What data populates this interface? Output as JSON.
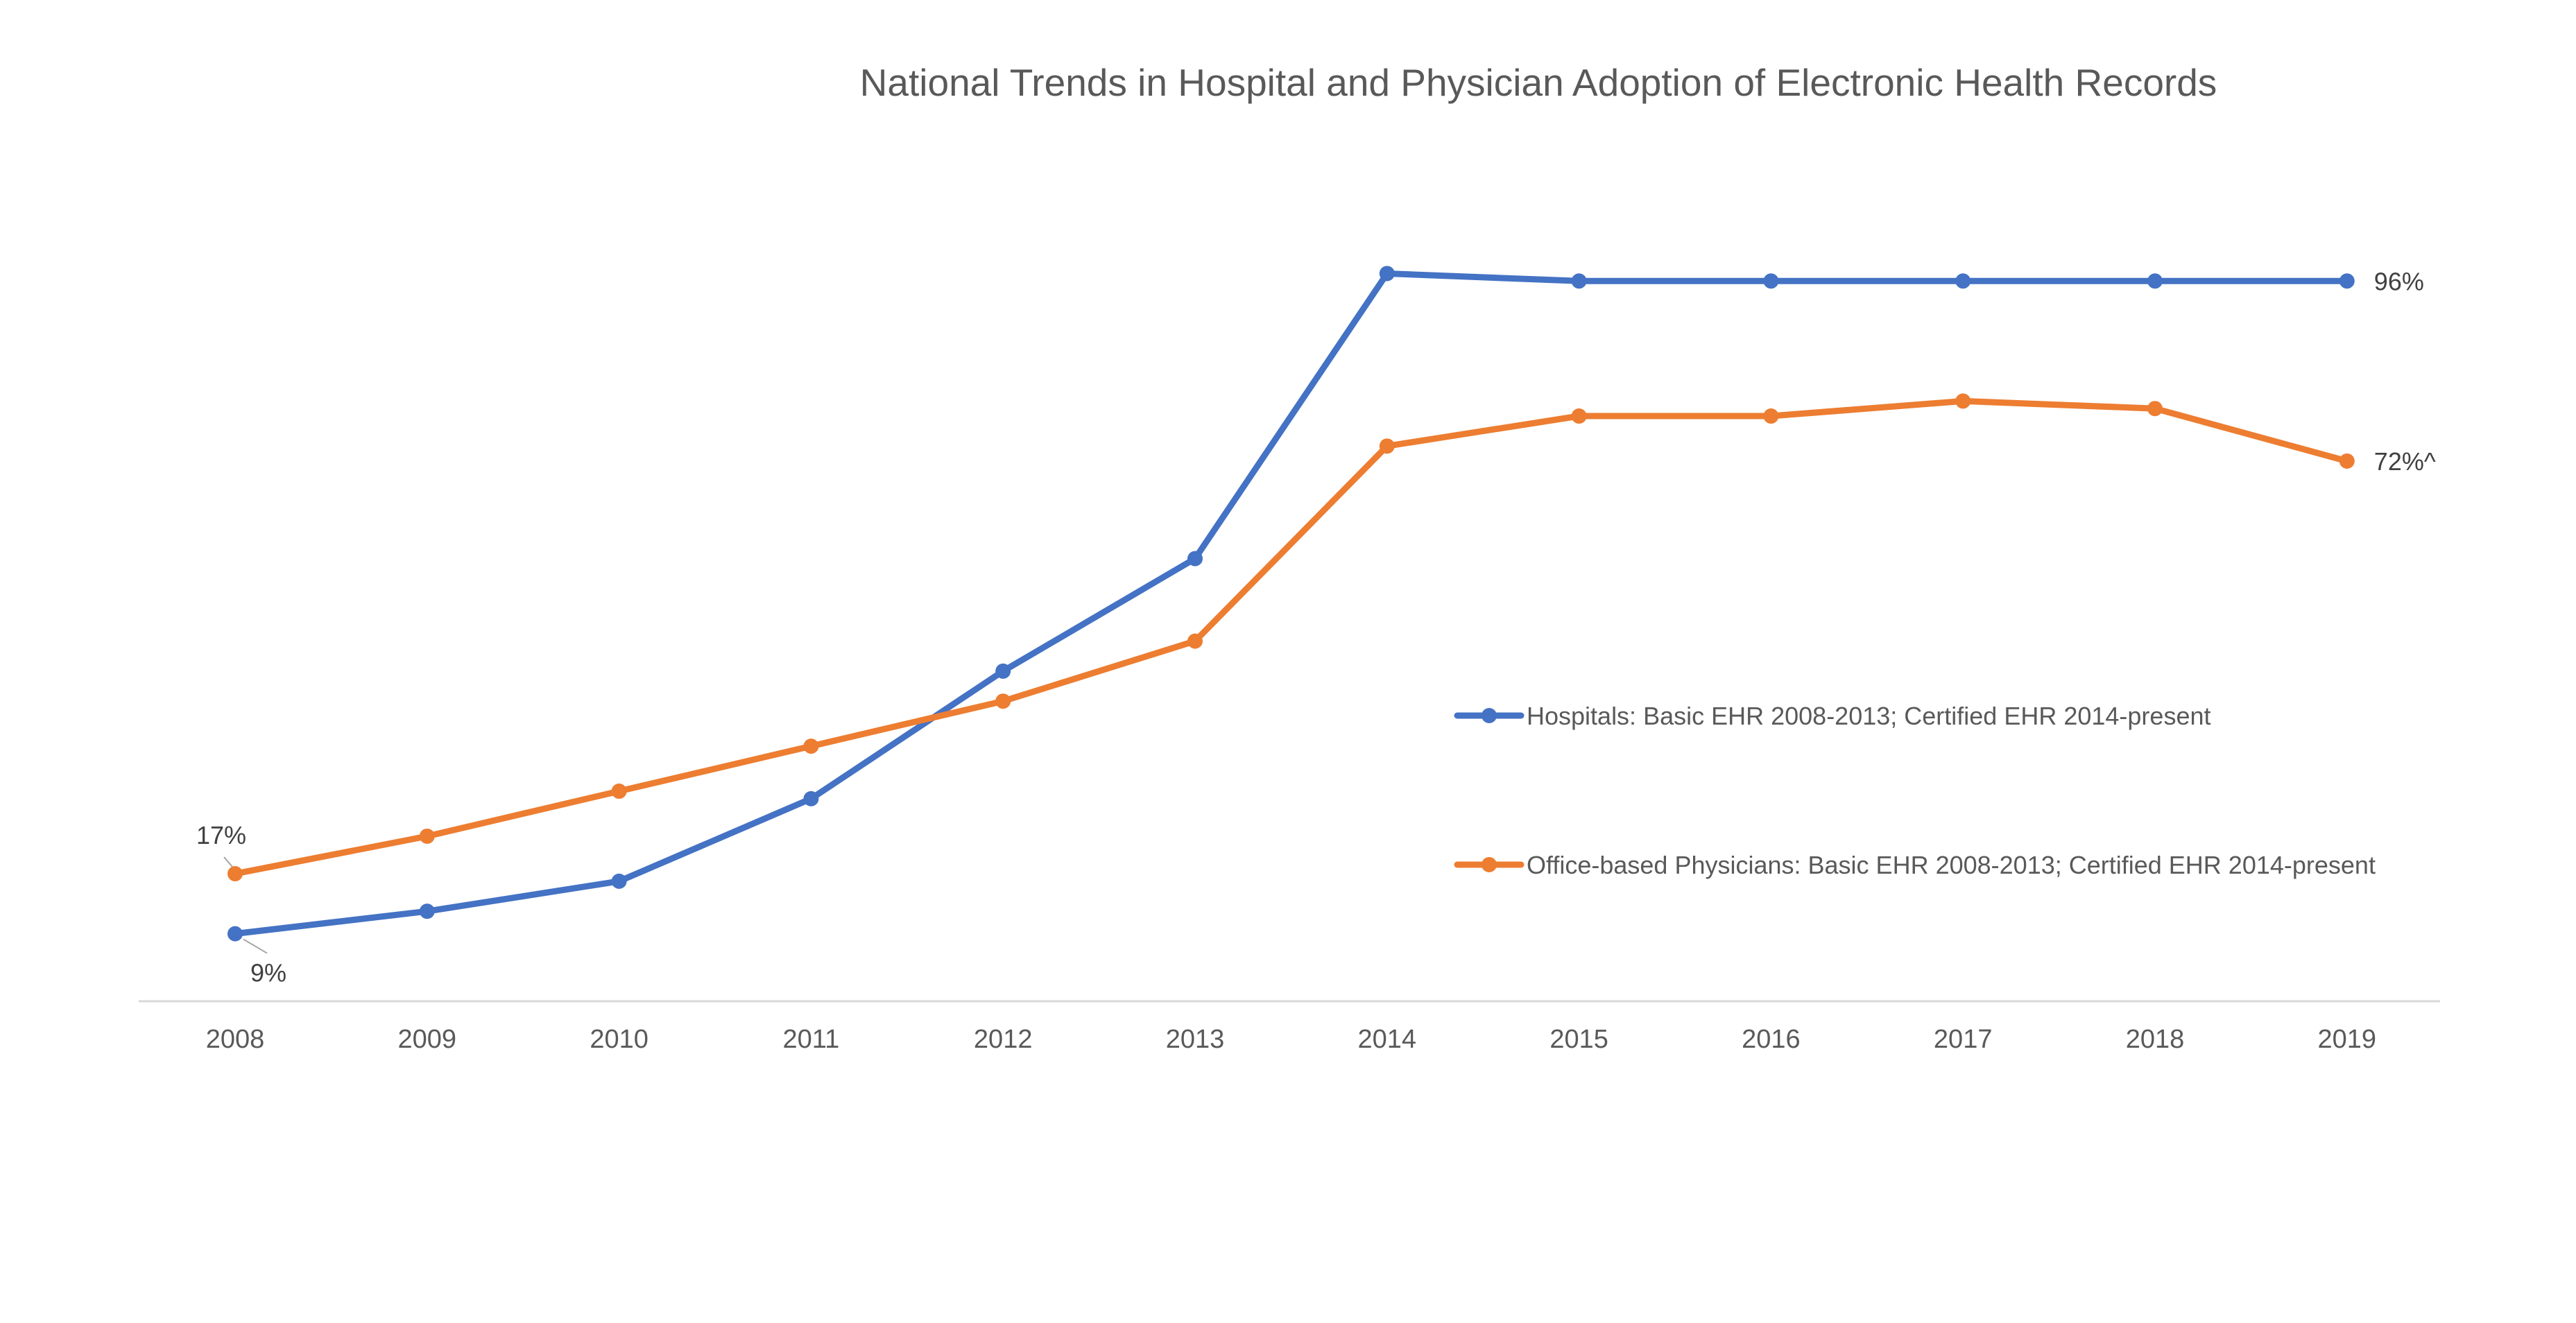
{
  "chart_data": {
    "type": "line",
    "title": "National Trends in Hospital and Physician Adoption of Electronic Health Records",
    "xlabel": "",
    "ylabel": "",
    "categories": [
      "2008",
      "2009",
      "2010",
      "2011",
      "2012",
      "2013",
      "2014",
      "2015",
      "2016",
      "2017",
      "2018",
      "2019"
    ],
    "ylim": [
      0,
      100
    ],
    "grid": false,
    "legend_position": "right",
    "series": [
      {
        "name": "Hospitals: Basic EHR 2008-2013; Certified EHR 2014-present",
        "color": "#4472C4",
        "values": [
          9,
          12,
          16,
          27,
          44,
          59,
          97,
          96,
          96,
          96,
          96,
          96
        ]
      },
      {
        "name": "Office-based Physicians: Basic EHR 2008-2013; Certified EHR 2014-present",
        "color": "#ED7D31",
        "values": [
          17,
          22,
          28,
          34,
          40,
          48,
          74,
          78,
          78,
          80,
          79,
          72
        ]
      }
    ],
    "data_labels": [
      {
        "series": 0,
        "index": 0,
        "text": "9%"
      },
      {
        "series": 1,
        "index": 0,
        "text": "17%"
      },
      {
        "series": 0,
        "index": 11,
        "text": "96%"
      },
      {
        "series": 1,
        "index": 11,
        "text": "72%^"
      }
    ],
    "axis_color": "#D9D9D9"
  }
}
